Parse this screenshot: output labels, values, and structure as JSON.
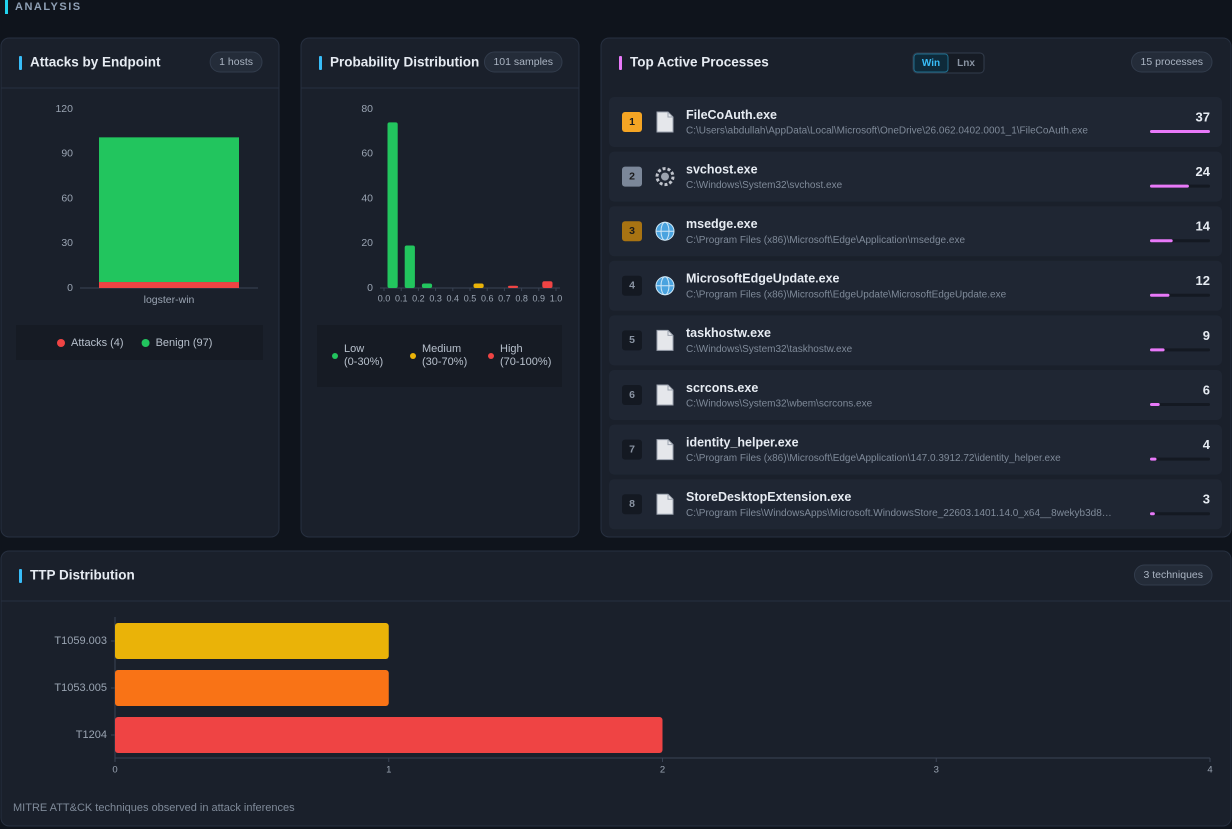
{
  "section_title": "ANALYSIS",
  "chart_data": [
    {
      "type": "stacked_bar",
      "title": "Attacks by Endpoint",
      "badge": "1 hosts",
      "categories": [
        "logster-win"
      ],
      "series": [
        {
          "name": "Attacks (4)",
          "color": "#ef4444",
          "values": [
            4
          ]
        },
        {
          "name": "Benign (97)",
          "color": "#22c55e",
          "values": [
            97
          ]
        }
      ],
      "ylim": [
        0,
        120
      ],
      "yticks": [
        0,
        30,
        60,
        90,
        120
      ]
    },
    {
      "type": "histogram",
      "title": "Probability Distribution",
      "badge": "101 samples",
      "bins": [
        0,
        0.1,
        0.2,
        0.3,
        0.4,
        0.5,
        0.6,
        0.7,
        0.8,
        0.9,
        1
      ],
      "values": [
        74,
        19,
        2,
        0,
        0,
        2,
        0,
        1,
        0,
        3
      ],
      "colors": [
        "#22c55e",
        "#22c55e",
        "#22c55e",
        "#eab308",
        "#eab308",
        "#eab308",
        "#eab308",
        "#ef4444",
        "#ef4444",
        "#ef4444"
      ],
      "xlim": [
        0,
        1
      ],
      "xticks": [
        {
          "value": 0,
          "label": "0.0"
        },
        {
          "value": 0.1,
          "label": "0.1"
        },
        {
          "value": 0.2,
          "label": "0.2"
        },
        {
          "value": 0.3,
          "label": "0.3"
        },
        {
          "value": 0.4,
          "label": "0.4"
        },
        {
          "value": 0.5,
          "label": "0.5"
        },
        {
          "value": 0.6,
          "label": "0.6"
        },
        {
          "value": 0.7,
          "label": "0.7"
        },
        {
          "value": 0.8,
          "label": "0.8"
        },
        {
          "value": 0.9,
          "label": "0.9"
        },
        {
          "value": 1,
          "label": "1.0"
        }
      ],
      "ylim": [
        0,
        80
      ],
      "yticks": [
        0,
        20,
        40,
        60,
        80
      ],
      "legend": [
        {
          "name": "Low (0-30%)",
          "color": "#22c55e"
        },
        {
          "name": "Medium (30-70%)",
          "color": "#eab308"
        },
        {
          "name": "High (70-100%)",
          "color": "#ef4444"
        }
      ]
    },
    {
      "type": "barh",
      "title": "TTP Distribution",
      "badge": "3 techniques",
      "note": "MITRE ATT&CK techniques observed in attack inferences",
      "categories": [
        "T1059.003",
        "T1053.005",
        "T1204"
      ],
      "values": [
        1,
        1,
        2
      ],
      "colors": [
        "#eab308",
        "#f97316",
        "#ef4444"
      ],
      "xlim": [
        0,
        4
      ],
      "xticks": [
        0,
        1,
        2,
        3,
        4
      ]
    }
  ],
  "processes": {
    "title": "Top Active Processes",
    "tabs": [
      "Win",
      "Lnx"
    ],
    "badge": "15 processes",
    "items": [
      {
        "rank": 1,
        "icon": "file",
        "name": "FileCoAuth.exe",
        "path": "C:\\Users\\abdullah\\AppData\\Local\\Microsoft\\OneDrive\\26.062.0402.0001_1\\FileCoAuth.exe",
        "count": 37
      },
      {
        "rank": 2,
        "icon": "gear",
        "name": "svchost.exe",
        "path": "C:\\Windows\\System32\\svchost.exe",
        "count": 24
      },
      {
        "rank": 3,
        "icon": "globe",
        "name": "msedge.exe",
        "path": "C:\\Program Files (x86)\\Microsoft\\Edge\\Application\\msedge.exe",
        "count": 14
      },
      {
        "rank": 4,
        "icon": "globe",
        "name": "MicrosoftEdgeUpdate.exe",
        "path": "C:\\Program Files (x86)\\Microsoft\\EdgeUpdate\\MicrosoftEdgeUpdate.exe",
        "count": 12
      },
      {
        "rank": 5,
        "icon": "file",
        "name": "taskhostw.exe",
        "path": "C:\\Windows\\System32\\taskhostw.exe",
        "count": 9
      },
      {
        "rank": 6,
        "icon": "file",
        "name": "scrcons.exe",
        "path": "C:\\Windows\\System32\\wbem\\scrcons.exe",
        "count": 6
      },
      {
        "rank": 7,
        "icon": "file",
        "name": "identity_helper.exe",
        "path": "C:\\Program Files (x86)\\Microsoft\\Edge\\Application\\147.0.3912.72\\identity_helper.exe",
        "count": 4
      },
      {
        "rank": 8,
        "icon": "file",
        "name": "StoreDesktopExtension.exe",
        "path": "C:\\Program Files\\WindowsApps\\Microsoft.WindowsStore_22603.1401.14.0_x64__8wekyb3d8…",
        "count": 3
      }
    ]
  }
}
